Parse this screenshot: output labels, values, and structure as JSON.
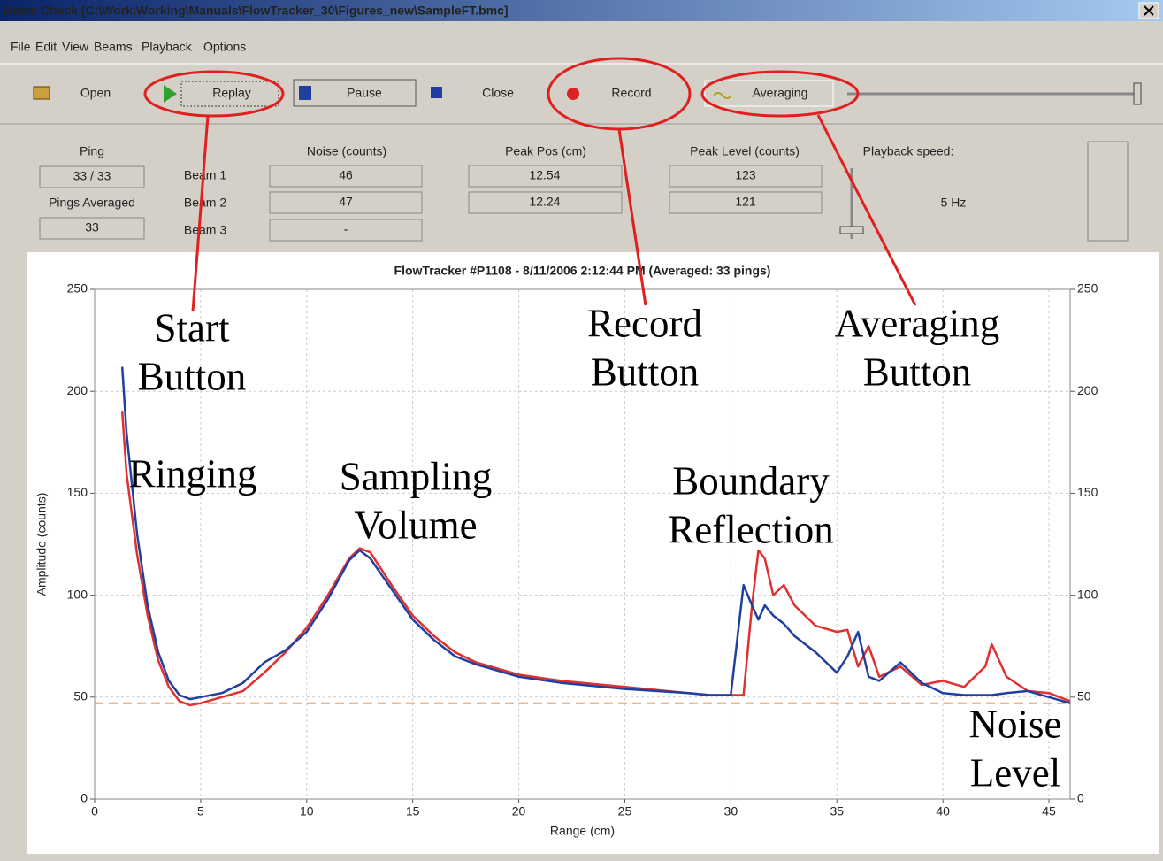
{
  "window": {
    "title": "Beam Check [C:\\Work\\Working\\Manuals\\FlowTracker_30\\Figures_new\\SampleFT.bmc]"
  },
  "menu": [
    "File",
    "Edit",
    "View",
    "Beams",
    "Playback",
    "Options"
  ],
  "toolbar": {
    "open": "Open",
    "replay": "Replay",
    "pause": "Pause",
    "close": "Close",
    "record": "Record",
    "averaging": "Averaging"
  },
  "panel": {
    "ping_label": "Ping",
    "ping_value": "33 / 33",
    "pings_averaged_label": "Pings Averaged",
    "pings_averaged_value": "33",
    "beams": [
      "Beam 1",
      "Beam 2",
      "Beam 3"
    ],
    "noise_header": "Noise (counts)",
    "noise_values": [
      "46",
      "47",
      "-"
    ],
    "peak_pos_header": "Peak Pos (cm)",
    "peak_pos_values": [
      "12.54",
      "12.24"
    ],
    "peak_level_header": "Peak Level (counts)",
    "peak_level_values": [
      "123",
      "121"
    ],
    "playback_speed_label": "Playback speed:",
    "playback_speed_value": "5 Hz"
  },
  "chart_data": {
    "type": "line",
    "title": "FlowTracker #P1108  -  8/11/2006 2:12:44 PM (Averaged: 33 pings)",
    "x_label": "Range (cm)",
    "y_label": "Amplitude (counts)",
    "x": [
      1.3,
      1.5,
      2,
      2.5,
      3,
      3.5,
      4,
      4.5,
      5,
      6,
      7,
      8,
      9,
      10,
      11,
      12,
      12.5,
      13,
      14,
      15,
      16,
      17,
      18,
      20,
      22,
      25,
      28,
      29,
      30,
      30.6,
      31,
      31.3,
      31.6,
      32,
      32.5,
      33,
      34,
      35,
      35.5,
      36,
      36.5,
      37,
      38,
      39,
      40,
      41,
      42,
      42.3,
      43,
      44,
      45,
      46
    ],
    "series": [
      {
        "color": "#e03030",
        "values": [
          190,
          160,
          120,
          90,
          68,
          55,
          48,
          46,
          47,
          50,
          53,
          62,
          72,
          84,
          100,
          118,
          123,
          121,
          105,
          90,
          80,
          72,
          67,
          61,
          58,
          55,
          52,
          51,
          51,
          51,
          95,
          122,
          118,
          100,
          105,
          95,
          85,
          82,
          83,
          65,
          75,
          60,
          65,
          56,
          58,
          55,
          65,
          76,
          60,
          53,
          52,
          48
        ]
      },
      {
        "color": "#2040a0",
        "values": [
          212,
          180,
          130,
          95,
          72,
          58,
          51,
          49,
          50,
          52,
          57,
          67,
          73,
          82,
          98,
          117,
          122,
          118,
          103,
          88,
          78,
          70,
          66,
          60,
          57,
          54,
          52,
          51,
          51,
          105,
          95,
          88,
          95,
          90,
          86,
          80,
          72,
          62,
          70,
          82,
          60,
          58,
          67,
          57,
          52,
          51,
          51,
          51,
          52,
          53,
          50,
          47
        ]
      }
    ],
    "noise_level": 47,
    "noise_color": "#e0a070",
    "xlim": [
      0,
      46
    ],
    "ylim": [
      0,
      250
    ],
    "xticks": [
      0,
      5,
      10,
      15,
      20,
      25,
      30,
      35,
      40,
      45
    ],
    "yticks": [
      0,
      50,
      100,
      150,
      200,
      250
    ],
    "y2lim": [
      0,
      250
    ],
    "y2ticks": [
      0,
      50,
      100,
      150,
      200,
      250
    ],
    "grid": true
  },
  "annotations": [
    {
      "lines": [
        "Start",
        "Button"
      ]
    },
    {
      "lines": [
        "Record",
        "Button"
      ]
    },
    {
      "lines": [
        "Averaging",
        "Button"
      ]
    },
    {
      "lines": [
        "Ringing"
      ]
    },
    {
      "lines": [
        "Sampling",
        "Volume"
      ]
    },
    {
      "lines": [
        "Boundary",
        "Reflection"
      ]
    },
    {
      "lines": [
        "Noise",
        "Level"
      ]
    }
  ]
}
